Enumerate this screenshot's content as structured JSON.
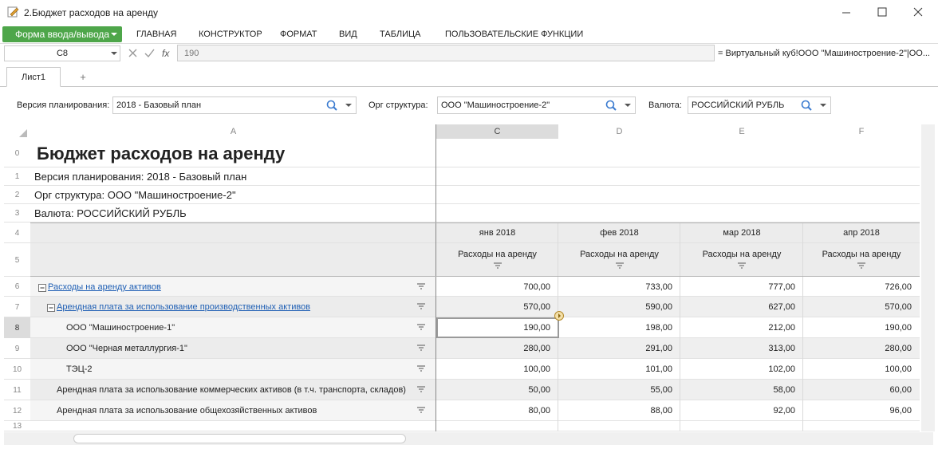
{
  "window": {
    "title": "2.Бюджет расходов на аренду"
  },
  "ribbon": {
    "file_button": "Форма ввода/вывода",
    "tabs": [
      "ГЛАВНАЯ",
      "КОНСТРУКТОР",
      "ФОРМАТ",
      "ВИД",
      "ТАБЛИЦА",
      "ПОЛЬЗОВАТЕЛЬСКИЕ ФУНКЦИИ"
    ]
  },
  "formula_bar": {
    "cell": "C8",
    "value": "190",
    "reference": "= Виртуальный куб!ООО \"Машиностроение-2\"|ОО..."
  },
  "sheet_tabs": {
    "tabs": [
      "Лист1"
    ],
    "add": "+"
  },
  "filters": [
    {
      "label": "Версия планирования:",
      "value": "2018 - Базовый план"
    },
    {
      "label": "Орг структура:",
      "value": "ООО \"Машиностроение-2\""
    },
    {
      "label": "Валюта:",
      "value": "РОССИЙСКИЙ РУБЛЬ"
    }
  ],
  "grid": {
    "columns": [
      "A",
      "C",
      "D",
      "E",
      "F"
    ],
    "row_numbers": [
      "0",
      "1",
      "2",
      "3",
      "4",
      "5",
      "6",
      "7",
      "8",
      "9",
      "10",
      "11",
      "12",
      "13"
    ],
    "title": "Бюджет расходов на аренду",
    "info": [
      "Версия планирования: 2018 - Базовый план",
      "Орг структура: ООО \"Машиностроение-2\"",
      "Валюта: РОССИЙСКИЙ РУБЛЬ"
    ],
    "months": [
      "янв 2018",
      "фев 2018",
      "мар 2018",
      "апр 2018"
    ],
    "measures": [
      "Расходы на аренду",
      "Расходы на аренду",
      "Расходы на аренду",
      "Расходы на аренду"
    ],
    "rows": [
      {
        "label": "Расходы на аренду активов",
        "values": [
          "700,00",
          "733,00",
          "777,00",
          "726,00"
        ]
      },
      {
        "label": "Арендная плата за использование производственных активов",
        "values": [
          "570,00",
          "590,00",
          "627,00",
          "570,00"
        ]
      },
      {
        "label": "ООО \"Машиностроение-1\"",
        "values": [
          "190,00",
          "198,00",
          "212,00",
          "190,00"
        ]
      },
      {
        "label": "ООО \"Черная металлургия-1\"",
        "values": [
          "280,00",
          "291,00",
          "313,00",
          "280,00"
        ]
      },
      {
        "label": "ТЭЦ-2",
        "values": [
          "100,00",
          "101,00",
          "102,00",
          "100,00"
        ]
      },
      {
        "label": "Арендная плата за использование коммерческих активов (в т.ч. транспорта, складов)",
        "values": [
          "50,00",
          "55,00",
          "58,00",
          "60,00"
        ]
      },
      {
        "label": "Арендная плата за использование общехозяйственных активов",
        "values": [
          "80,00",
          "88,00",
          "92,00",
          "96,00"
        ]
      }
    ]
  }
}
